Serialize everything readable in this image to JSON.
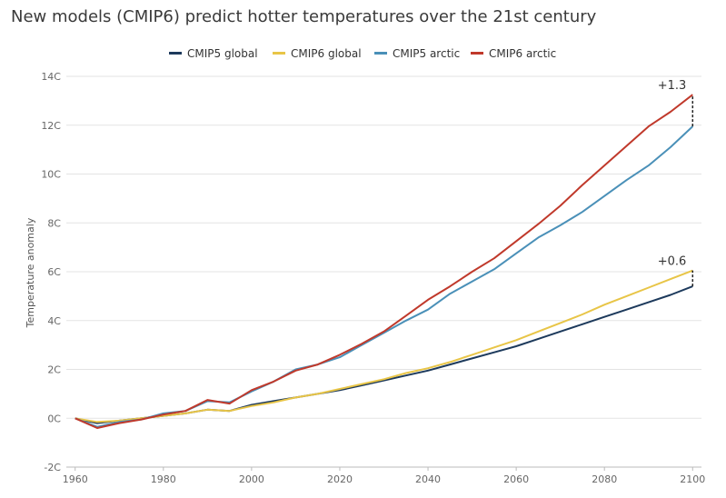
{
  "chart_data": {
    "type": "line",
    "title": "New models (CMIP6) predict hotter temperatures over the 21st century",
    "xlabel": "",
    "ylabel": "Temperature anomaly",
    "x_ticks": [
      "1960",
      "1980",
      "2000",
      "2020",
      "2040",
      "2060",
      "2080",
      "2100"
    ],
    "y_ticks": [
      "-2C",
      "0C",
      "2C",
      "4C",
      "6C",
      "8C",
      "10C",
      "12C",
      "14C"
    ],
    "xlim": [
      1958,
      2102
    ],
    "ylim": [
      -2,
      14
    ],
    "grid": "horizontal",
    "legend_position": "top",
    "x": [
      1960,
      1965,
      1970,
      1975,
      1980,
      1985,
      1990,
      1995,
      2000,
      2005,
      2010,
      2015,
      2020,
      2025,
      2030,
      2035,
      2040,
      2045,
      2050,
      2055,
      2060,
      2065,
      2070,
      2075,
      2080,
      2085,
      2090,
      2095,
      2100
    ],
    "series": [
      {
        "name": "CMIP5 global",
        "color": "#1d3a5c",
        "values": [
          0.0,
          -0.2,
          -0.1,
          0.0,
          0.1,
          0.2,
          0.35,
          0.3,
          0.55,
          0.7,
          0.85,
          1.0,
          1.15,
          1.35,
          1.55,
          1.75,
          1.95,
          2.2,
          2.45,
          2.7,
          2.95,
          3.25,
          3.55,
          3.85,
          4.15,
          4.45,
          4.75,
          5.05,
          5.4
        ]
      },
      {
        "name": "CMIP6 global",
        "color": "#e8c547",
        "values": [
          0.0,
          -0.15,
          -0.1,
          0.0,
          0.1,
          0.2,
          0.35,
          0.3,
          0.5,
          0.65,
          0.85,
          1.0,
          1.2,
          1.4,
          1.6,
          1.85,
          2.05,
          2.3,
          2.6,
          2.9,
          3.2,
          3.55,
          3.9,
          4.25,
          4.65,
          5.0,
          5.35,
          5.7,
          6.05
        ]
      },
      {
        "name": "CMIP5 arctic",
        "color": "#4a90b8",
        "values": [
          0.0,
          -0.35,
          -0.15,
          -0.05,
          0.2,
          0.3,
          0.7,
          0.65,
          1.1,
          1.5,
          2.0,
          2.2,
          2.5,
          3.0,
          3.5,
          4.0,
          4.45,
          5.1,
          5.6,
          6.1,
          6.75,
          7.4,
          7.9,
          8.45,
          9.1,
          9.75,
          10.35,
          11.1,
          11.95
        ]
      },
      {
        "name": "CMIP6 arctic",
        "color": "#c0392b",
        "values": [
          0.0,
          -0.4,
          -0.2,
          -0.05,
          0.15,
          0.3,
          0.75,
          0.6,
          1.15,
          1.5,
          1.95,
          2.2,
          2.6,
          3.05,
          3.55,
          4.2,
          4.85,
          5.4,
          6.0,
          6.55,
          7.25,
          7.95,
          8.7,
          9.55,
          10.35,
          11.15,
          11.95,
          12.55,
          13.25
        ]
      }
    ],
    "annotations": [
      {
        "text": "+1.3",
        "x": 2100,
        "y_from": 11.95,
        "y_to": 13.25
      },
      {
        "text": "+0.6",
        "x": 2100,
        "y_from": 5.4,
        "y_to": 6.05
      }
    ]
  }
}
